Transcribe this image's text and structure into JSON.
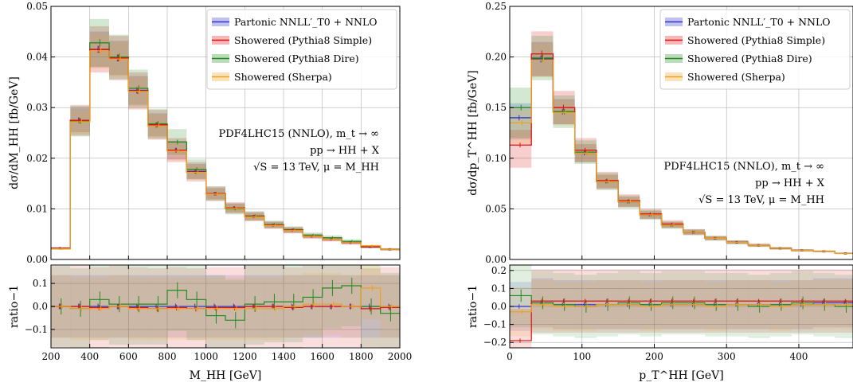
{
  "chart_data": [
    {
      "type": "line",
      "xlabel": "M_HH [GeV]",
      "ylabel": "dσ/dM_HH [fb/GeV]",
      "ratio_ylabel": "ratio−1",
      "xlim": [
        200,
        2000
      ],
      "ylim": [
        0,
        0.05
      ],
      "ratio_ylim": [
        -0.18,
        0.18
      ],
      "x_ticks": [
        200,
        400,
        600,
        800,
        1000,
        1200,
        1400,
        1600,
        1800,
        2000
      ],
      "y_ticks": [
        "0.00",
        "0.01",
        "0.02",
        "0.03",
        "0.04",
        "0.05"
      ],
      "ratio_ticks": [
        "0.1",
        "0.0",
        "−0.1"
      ],
      "ratio_tick_values": [
        0.1,
        0.0,
        -0.1
      ],
      "legend_position": "top-right",
      "annotation": [
        "PDF4LHC15 (NNLO), m_t → ∞",
        "pp → HH + X",
        "√S = 13 TeV, μ = M_HH"
      ],
      "bin_edges": [
        200,
        300,
        400,
        500,
        600,
        700,
        800,
        900,
        1000,
        1100,
        1200,
        1300,
        1400,
        1500,
        1600,
        1700,
        1800,
        1900,
        2000
      ],
      "series": [
        {
          "name": "Partonic NNLL′_T0 + NNLO",
          "color": "#3333cc",
          "values": [
            0.0022,
            0.0275,
            0.0415,
            0.0398,
            0.0334,
            0.0266,
            0.0216,
            0.0174,
            0.013,
            0.0102,
            0.0085,
            0.0068,
            0.0058,
            0.0046,
            0.004,
            0.0033,
            0.0025,
            0.002
          ],
          "ratio": [
            0,
            0,
            0,
            0,
            0,
            0,
            0,
            0,
            0,
            0,
            0,
            0,
            0,
            0,
            0,
            0,
            0,
            0
          ]
        },
        {
          "name": "Showered (Pythia8 Simple)",
          "color": "#dd1111",
          "values": [
            0.0022,
            0.0275,
            0.0415,
            0.0398,
            0.0333,
            0.0266,
            0.0216,
            0.0173,
            0.013,
            0.0102,
            0.0085,
            0.0068,
            0.0058,
            0.0046,
            0.004,
            0.0033,
            0.0025,
            0.002
          ],
          "ratio": [
            0,
            0,
            -0.005,
            0,
            -0.005,
            -0.01,
            -0.005,
            -0.01,
            -0.005,
            -0.005,
            0,
            0,
            -0.005,
            0,
            0,
            0,
            -0.01,
            -0.005
          ]
        },
        {
          "name": "Showered (Pythia8 Dire)",
          "color": "#228b22",
          "values": [
            0.0022,
            0.0273,
            0.0428,
            0.04,
            0.0338,
            0.0268,
            0.0232,
            0.0178,
            0.013,
            0.01,
            0.0086,
            0.0069,
            0.0059,
            0.0048,
            0.0043,
            0.0036,
            0.0025,
            0.002
          ],
          "ratio": [
            0,
            -0.01,
            0.03,
            0.01,
            0.01,
            0.01,
            0.07,
            0.03,
            -0.04,
            -0.06,
            0.01,
            0.02,
            0.02,
            0.04,
            0.08,
            0.09,
            0.0,
            -0.03
          ]
        },
        {
          "name": "Showered (Sherpa)",
          "color": "#f0a020",
          "values": [
            0.0021,
            0.0272,
            0.0412,
            0.0396,
            0.0332,
            0.0264,
            0.0214,
            0.0172,
            0.0129,
            0.0101,
            0.0084,
            0.0067,
            0.0057,
            0.0046,
            0.004,
            0.0033,
            0.0027,
            0.002
          ],
          "ratio": [
            0,
            -0.01,
            -0.01,
            0,
            -0.01,
            -0.01,
            -0.01,
            -0.01,
            -0.01,
            -0.01,
            -0.01,
            -0.01,
            0,
            0.01,
            0.01,
            0,
            0.08,
            0.0
          ]
        }
      ]
    },
    {
      "type": "line",
      "xlabel": "p_T^HH [GeV]",
      "ylabel": "dσ/dp_T^HH [fb/GeV]",
      "ratio_ylabel": "ratio−1",
      "xlim": [
        0,
        475
      ],
      "ylim": [
        0,
        0.25
      ],
      "ratio_ylim": [
        -0.23,
        0.23
      ],
      "x_ticks": [
        0,
        100,
        200,
        300,
        400
      ],
      "y_ticks": [
        "0.00",
        "0.05",
        "0.10",
        "0.15",
        "0.20",
        "0.25"
      ],
      "ratio_ticks": [
        "0.2",
        "0.1",
        "0.0",
        "−0.1",
        "−0.2"
      ],
      "ratio_tick_values": [
        0.2,
        0.1,
        0.0,
        -0.1,
        -0.2
      ],
      "legend_position": "top-right",
      "annotation": [
        "PDF4LHC15 (NNLO), m_t → ∞",
        "pp → HH + X",
        "√S = 13 TeV, μ = M_HH"
      ],
      "bin_edges": [
        0,
        30,
        60,
        90,
        120,
        150,
        180,
        210,
        240,
        270,
        300,
        330,
        360,
        390,
        420,
        450,
        480
      ],
      "series": [
        {
          "name": "Partonic NNLL′_T0 + NNLO",
          "color": "#3333cc",
          "values": [
            0.14,
            0.198,
            0.146,
            0.105,
            0.077,
            0.057,
            0.044,
            0.034,
            0.027,
            0.021,
            0.017,
            0.014,
            0.011,
            0.009,
            0.008,
            0.006
          ],
          "ratio": [
            0.0,
            0.02,
            0.01,
            0.01,
            0.01,
            0.01,
            0.01,
            0.01,
            0.01,
            0.01,
            0.01,
            0.01,
            0.01,
            0.01,
            0.02,
            0.02
          ]
        },
        {
          "name": "Showered (Pythia8 Simple)",
          "color": "#dd1111",
          "values": [
            0.113,
            0.203,
            0.15,
            0.108,
            0.078,
            0.058,
            0.045,
            0.035,
            0.027,
            0.021,
            0.017,
            0.014,
            0.011,
            0.009,
            0.008,
            0.006
          ],
          "ratio": [
            -0.19,
            0.03,
            0.03,
            0.03,
            0.03,
            0.03,
            0.03,
            0.03,
            0.03,
            0.03,
            0.03,
            0.03,
            0.03,
            0.03,
            0.03,
            0.03
          ]
        },
        {
          "name": "Showered (Pythia8 Dire)",
          "color": "#228b22",
          "values": [
            0.15,
            0.199,
            0.146,
            0.106,
            0.077,
            0.057,
            0.044,
            0.034,
            0.027,
            0.021,
            0.017,
            0.014,
            0.011,
            0.009,
            0.008,
            0.006
          ],
          "ratio": [
            0.06,
            0.02,
            0.01,
            0.0,
            0.01,
            0.02,
            0.01,
            0.02,
            0.02,
            0.01,
            0.01,
            0.0,
            0.01,
            0.02,
            0.01,
            0.0
          ]
        },
        {
          "name": "Showered (Sherpa)",
          "color": "#f0a020",
          "values": [
            0.135,
            0.197,
            0.145,
            0.105,
            0.077,
            0.057,
            0.044,
            0.034,
            0.027,
            0.021,
            0.017,
            0.014,
            0.011,
            0.009,
            0.008,
            0.006
          ],
          "ratio": [
            -0.03,
            0.01,
            0.0,
            0.0,
            0.01,
            0.01,
            0.0,
            0.01,
            0.01,
            0.0,
            0.01,
            0.01,
            0.0,
            0.01,
            0.01,
            0.01
          ]
        }
      ]
    }
  ]
}
